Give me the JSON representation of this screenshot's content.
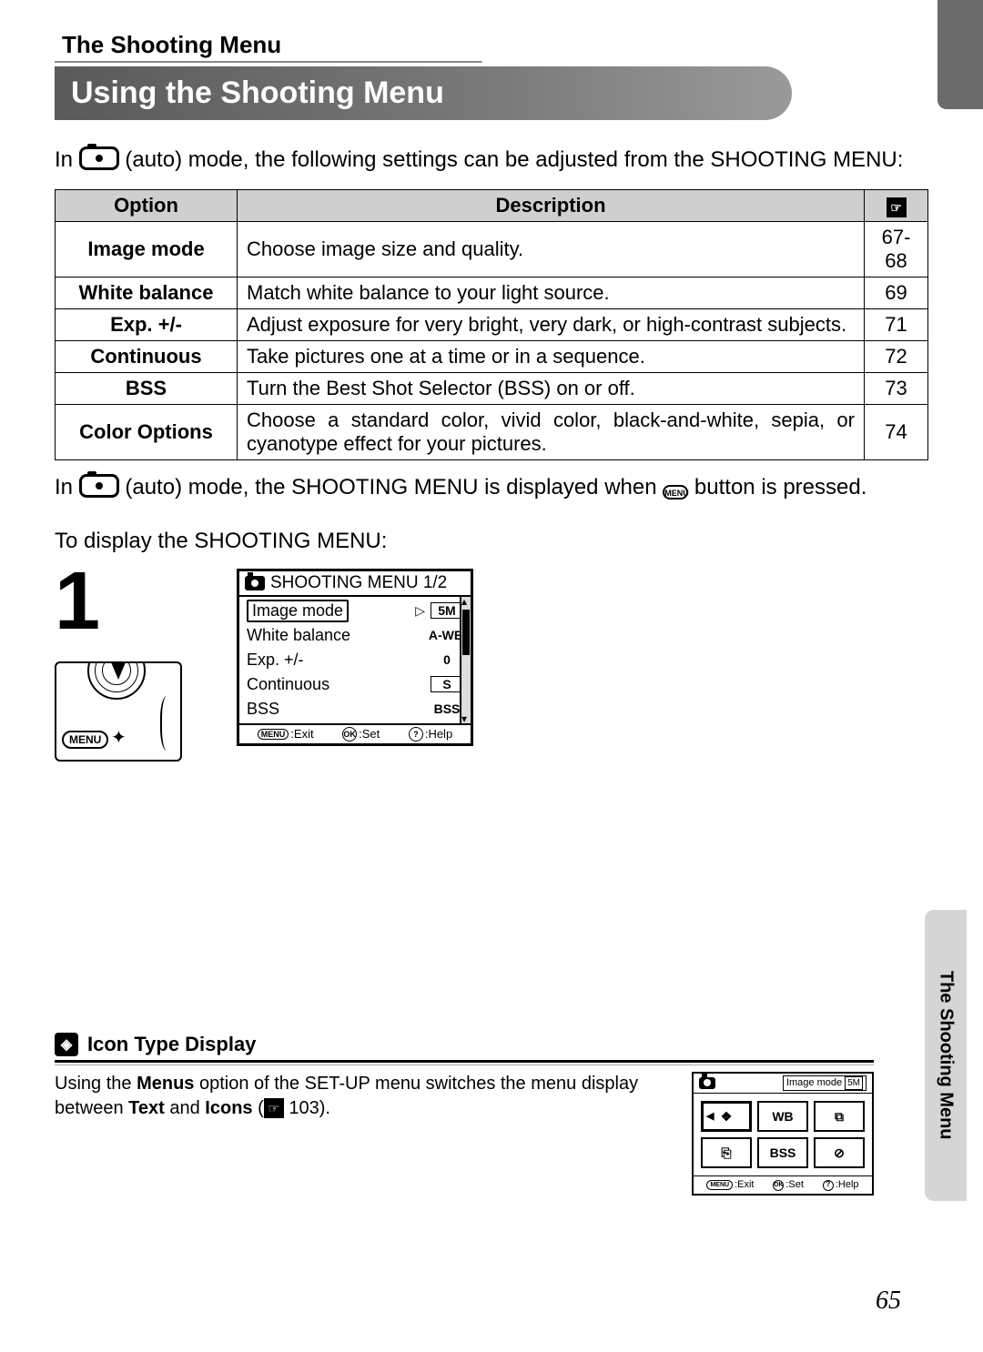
{
  "section_tab": "The Shooting Menu",
  "title": "Using the Shooting Menu",
  "intro_prefix": "In ",
  "intro_suffix": " (auto) mode, the following settings can be adjusted from the SHOOTING MENU:",
  "table": {
    "headers": {
      "option": "Option",
      "description": "Description",
      "page_icon": "☞"
    },
    "rows": [
      {
        "option": "Image mode",
        "description": "Choose image size and quality.",
        "page": "67-68"
      },
      {
        "option": "White balance",
        "description": "Match white balance to your light source.",
        "page": "69"
      },
      {
        "option": "Exp. +/-",
        "description": "Adjust exposure for very bright, very dark, or high-contrast subjects.",
        "page": "71"
      },
      {
        "option": "Continuous",
        "description": "Take pictures one at a time or in a sequence.",
        "page": "72"
      },
      {
        "option": "BSS",
        "description": "Turn the Best Shot Selector (BSS) on or off.",
        "page": "73"
      },
      {
        "option": "Color Options",
        "description": "Choose a standard color, vivid color, black-and-white, sepia, or cyanotype effect for your pictures.",
        "page": "74"
      }
    ]
  },
  "after_table_prefix": "In ",
  "after_table_mid": " (auto) mode, the SHOOTING MENU is displayed when ",
  "after_table_suffix": " button is pressed.",
  "menu_btn_label": "MENU",
  "display_label": "To display the SHOOTING MENU:",
  "step_number": "1",
  "camera_sketch": {
    "menu_label": "MENU",
    "flash": "✦"
  },
  "lcd": {
    "title": "SHOOTING MENU 1/2",
    "rows": [
      {
        "label": "Image mode",
        "value": "5M",
        "selected": true,
        "boxed": true
      },
      {
        "label": "White balance",
        "value": "A-WB",
        "selected": false,
        "boxed": false
      },
      {
        "label": "Exp. +/-",
        "value": "0",
        "selected": false,
        "boxed": false
      },
      {
        "label": "Continuous",
        "value": "S",
        "selected": false,
        "boxed": true
      },
      {
        "label": "BSS",
        "value": "BSS",
        "selected": false,
        "boxed": false
      }
    ],
    "footer": {
      "exit": ":Exit",
      "set": ":Set",
      "help": ":Help",
      "exit_btn": "MENU",
      "set_btn": "OK",
      "help_btn": "?"
    }
  },
  "note": {
    "title": "Icon Type Display",
    "text_1": "Using the ",
    "bold_1": "Menus",
    "text_2": " option of the SET-UP menu switches the menu display between ",
    "bold_2": "Text",
    "text_3": " and ",
    "bold_3": "Icons",
    "text_4": " (",
    "page": " 103).",
    "lcd": {
      "header_right_label": "Image mode",
      "header_right_val": "5M",
      "cells": [
        {
          "label": "❖",
          "selected": true
        },
        {
          "label": "WB",
          "selected": false
        },
        {
          "label": "⧉",
          "selected": false
        },
        {
          "label": "⎘",
          "selected": false
        },
        {
          "label": "BSS",
          "selected": false
        },
        {
          "label": "⊘",
          "selected": false
        }
      ],
      "footer": {
        "exit": ":Exit",
        "set": ":Set",
        "help": ":Help"
      }
    }
  },
  "side_tab": "The Shooting Menu",
  "page_number": "65",
  "colors": {
    "header_grey": "#cfcfcf",
    "title_bg_start": "#5a5a5a",
    "title_bg_end": "#9a9a9a",
    "side_tab_bg": "#d5d5d5",
    "top_stub_bg": "#6b6b6b"
  }
}
